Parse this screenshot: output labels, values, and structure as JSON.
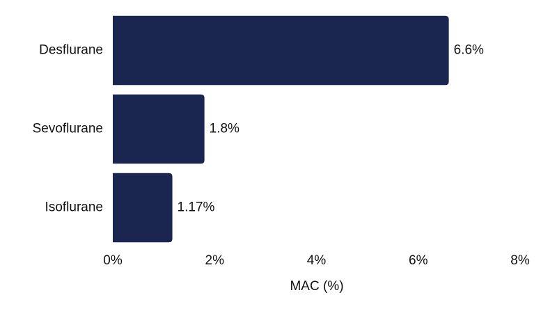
{
  "chart_data": {
    "type": "bar",
    "orientation": "horizontal",
    "categories": [
      "Desflurane",
      "Sevoflurane",
      "Isoflurane"
    ],
    "values": [
      6.6,
      1.8,
      1.17
    ],
    "value_labels": [
      "6.6%",
      "1.8%",
      "1.17%"
    ],
    "color": "#1a2550",
    "xlim": [
      0,
      8
    ],
    "xticks": [
      {
        "value": 0,
        "label": "0%"
      },
      {
        "value": 2,
        "label": "2%"
      },
      {
        "value": 4,
        "label": "4%"
      },
      {
        "value": 6,
        "label": "6%"
      },
      {
        "value": 8,
        "label": "8%"
      }
    ],
    "x_label": "MAC (%)",
    "grid": false
  }
}
